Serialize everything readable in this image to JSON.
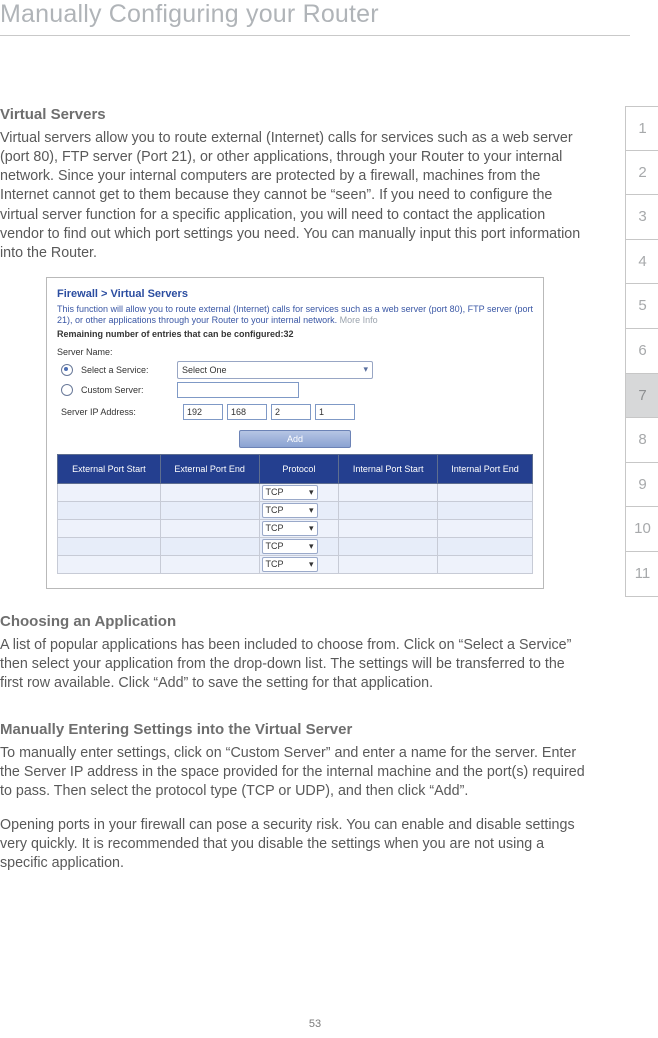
{
  "page_title": "Manually Configuring your Router",
  "sections": {
    "vs": {
      "heading": "Virtual Servers",
      "body": "Virtual servers allow you to route external (Internet) calls for services such as a web server (port 80), FTP server (Port 21), or other applications, through your Router to your internal network. Since your internal computers are protected by a firewall, machines from the Internet cannot get to them because they cannot be “seen”. If you need to configure the virtual server function for a specific application, you will need to contact the application vendor to find out which port settings you need. You can manually input this port information into the Router."
    },
    "choose": {
      "heading": "Choosing an Application",
      "body": "A list of popular applications has been included to choose from. Click on “Select a Service” then select your application from the drop-down list. The settings will be transferred to the first row available. Click “Add” to save the setting for that application."
    },
    "manual": {
      "heading": "Manually Entering Settings into the Virtual Server",
      "p1": "To manually enter settings, click on “Custom Server” and enter a name for the server. Enter the Server IP address in the space provided for the internal machine and the port(s) required to pass. Then select the protocol type (TCP or UDP), and then click “Add”.",
      "p2": "Opening ports in your firewall can pose a security risk. You can enable and disable settings very quickly. It is recommended that you disable the settings when you are not using a specific application."
    }
  },
  "page_number": "53",
  "tabs": [
    "1",
    "2",
    "3",
    "4",
    "5",
    "6",
    "7",
    "8",
    "9",
    "10",
    "11"
  ],
  "active_tab": "7",
  "shot": {
    "crumb": "Firewall > Virtual Servers",
    "desc": "This function will allow you to route external (Internet) calls for services such as a web server (port 80), FTP server (port 21), or other applications through your Router to your internal network.",
    "more": "More Info",
    "remain_prefix": "Remaining number of entries that can be configured:",
    "remain_value": "32",
    "server_name": "Server Name:",
    "select_service": "Select a Service:",
    "select_value": "Select One",
    "custom_server": "Custom Server:",
    "ip_label": "Server IP Address:",
    "ip": [
      "192",
      "168",
      "2",
      "1"
    ],
    "add": "Add",
    "columns": [
      "External Port Start",
      "External Port End",
      "Protocol",
      "Internal Port Start",
      "Internal Port End"
    ],
    "proto": "TCP",
    "row_count": 5,
    "colors": {
      "header_bg": "#243f8f",
      "link": "#2b4da0"
    }
  }
}
